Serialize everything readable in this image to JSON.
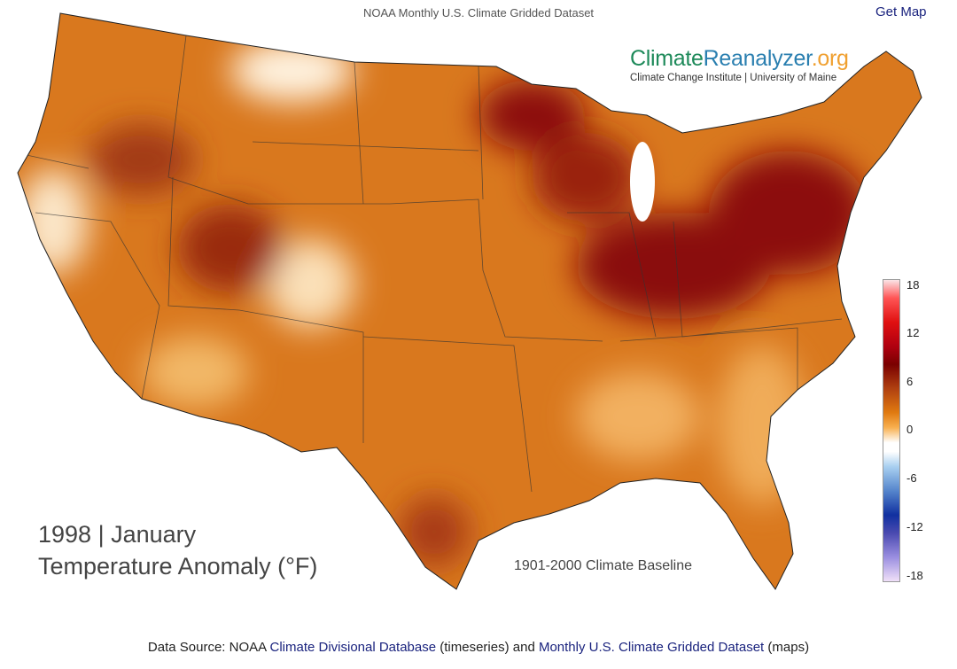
{
  "header": {
    "dataset_title": "NOAA Monthly U.S. Climate Gridded Dataset",
    "get_map_label": "Get Map"
  },
  "logo": {
    "part1": "Climate",
    "part2": "Reanalyzer",
    "part3": ".org",
    "subtitle": "Climate Change Institute | University of Maine"
  },
  "map": {
    "period": "1998 | January",
    "variable": "Temperature Anomaly (°F)",
    "baseline": "1901-2000 Climate Baseline",
    "colors": {
      "hot": "#8b0a0a",
      "warm": "#d9731a",
      "mild": "#f0a848",
      "neutral": "#ffffff"
    }
  },
  "legend": {
    "ticks": [
      "18",
      "12",
      "6",
      "0",
      "-6",
      "-12",
      "-18"
    ],
    "range": [
      -18,
      18
    ]
  },
  "footer": {
    "prefix": "Data Source: NOAA ",
    "link1": "Climate Divisional Database",
    "middle": " (timeseries) and ",
    "link2": "Monthly U.S. Climate Gridded Dataset",
    "suffix": " (maps)"
  }
}
